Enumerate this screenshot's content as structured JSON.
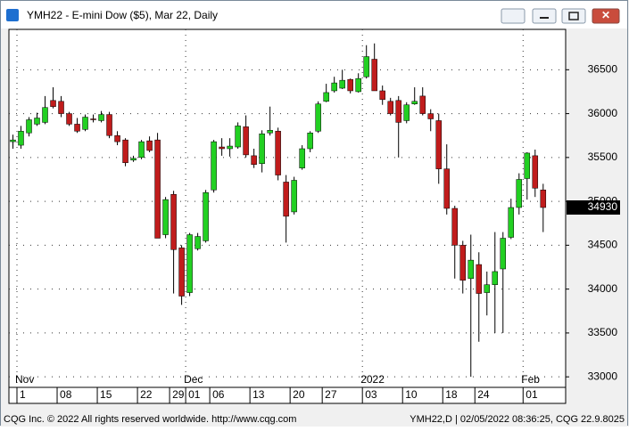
{
  "window_title": "YMH22 - E-mini Dow ($5), Mar 22, Daily",
  "chart_data": {
    "type": "candlestick",
    "open": [
      35680,
      35640,
      35780,
      35880,
      35900,
      36150,
      36140,
      36000,
      35880,
      35820,
      35940,
      35920,
      35990,
      35750,
      35700,
      35470,
      35500,
      35690,
      35700,
      34620,
      35080,
      34470,
      33960,
      34460,
      34550,
      35130,
      35620,
      35600,
      35620,
      35850,
      35520,
      35430,
      35780,
      35800,
      35220,
      34880,
      35380,
      35600,
      35800,
      36140,
      36260,
      36290,
      36390,
      36250,
      36420,
      36620,
      36260,
      36140,
      36150,
      35920,
      36110,
      36200,
      36000,
      35920,
      35370,
      34920,
      34500,
      34120,
      34280,
      33960,
      34050,
      34230,
      34590,
      34930,
      35260,
      35520,
      35130
    ],
    "high": [
      35760,
      35860,
      35960,
      36010,
      36200,
      36300,
      36200,
      36020,
      35950,
      35990,
      35990,
      36030,
      36020,
      35800,
      35720,
      35520,
      35700,
      35740,
      35780,
      35050,
      35120,
      34500,
      34640,
      34640,
      35130,
      35700,
      35720,
      35720,
      35900,
      35980,
      35600,
      35810,
      36080,
      35840,
      35300,
      35280,
      35640,
      35800,
      36140,
      36340,
      36420,
      36500,
      36400,
      36460,
      36780,
      36800,
      36320,
      36180,
      36200,
      36130,
      36300,
      36300,
      36050,
      36000,
      35650,
      34950,
      34550,
      34620,
      34420,
      34200,
      34650,
      34650,
      35030,
      35320,
      35560,
      35590,
      35200
    ],
    "low": [
      35600,
      35600,
      35740,
      35860,
      35880,
      36060,
      35960,
      35860,
      35780,
      35800,
      35900,
      35900,
      35720,
      35640,
      35400,
      35450,
      35480,
      35560,
      34580,
      34580,
      33950,
      33820,
      33920,
      34440,
      34530,
      35100,
      35520,
      35510,
      35600,
      35500,
      35380,
      35330,
      35750,
      35240,
      34530,
      34850,
      35360,
      35560,
      35780,
      36130,
      36240,
      36280,
      36230,
      36240,
      36400,
      36260,
      36100,
      35980,
      35500,
      35890,
      36100,
      35980,
      35800,
      35200,
      34850,
      34120,
      33950,
      33000,
      33400,
      33700,
      33500,
      33500,
      34570,
      34850,
      35020,
      35050,
      34650
    ],
    "close": [
      35700,
      35800,
      35930,
      35950,
      36070,
      36080,
      36000,
      35880,
      35800,
      35960,
      35930,
      35990,
      35750,
      35680,
      35440,
      35490,
      35680,
      35580,
      34580,
      35020,
      34450,
      33920,
      34620,
      34600,
      35100,
      35680,
      35600,
      35630,
      35860,
      35530,
      35420,
      35770,
      35810,
      35300,
      34830,
      35240,
      35600,
      35780,
      36110,
      36240,
      36350,
      36380,
      36260,
      36400,
      36650,
      36260,
      36160,
      36000,
      35900,
      36100,
      36140,
      36000,
      35940,
      35370,
      34920,
      34500,
      34100,
      34330,
      33950,
      34050,
      34200,
      34580,
      34930,
      35250,
      35550,
      35150,
      34930
    ],
    "up_color": "#22d022",
    "down_color": "#c01c1c",
    "ylim": [
      32880,
      36960
    ],
    "yticks": [
      33000,
      33500,
      34000,
      34500,
      35000,
      35500,
      36000,
      36500
    ],
    "xlim": [
      -0.5,
      68.8
    ],
    "xticks": [
      {
        "value": 1,
        "label": "1"
      },
      {
        "value": 6,
        "label": "08"
      },
      {
        "value": 11,
        "label": "15"
      },
      {
        "value": 16,
        "label": "22"
      },
      {
        "value": 20,
        "label": "29"
      },
      {
        "value": 22,
        "label": "01"
      },
      {
        "value": 25,
        "label": "06"
      },
      {
        "value": 30,
        "label": "13"
      },
      {
        "value": 35,
        "label": "20"
      },
      {
        "value": 39,
        "label": "27"
      },
      {
        "value": 44,
        "label": "03"
      },
      {
        "value": 49,
        "label": "10"
      },
      {
        "value": 54,
        "label": "18"
      },
      {
        "value": 58,
        "label": "24"
      },
      {
        "value": 64,
        "label": "01"
      }
    ],
    "month_ticks": [
      {
        "value": 1,
        "label": "Nov"
      },
      {
        "value": 22,
        "label": "Dec"
      },
      {
        "value": 44,
        "label": "2022"
      },
      {
        "value": 64,
        "label": "Feb"
      }
    ],
    "last_price": 34930,
    "grid": true
  },
  "footer": {
    "left": "CQG Inc. © 2022 All rights reserved worldwide. http://www.cqg.com",
    "right": "YMH22,D | 02/05/2022 08:36:25, CQG 22.9.8025"
  }
}
